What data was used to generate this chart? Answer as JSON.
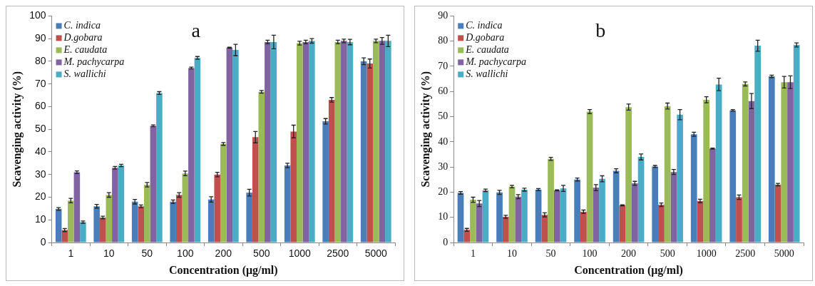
{
  "chart_data": [
    {
      "type": "bar",
      "xlabel": "Concentration (μg/ml)",
      "ylabel": "Scavenging activity (%)",
      "annotations": [
        "a"
      ],
      "categories": [
        "1",
        "10",
        "50",
        "100",
        "200",
        "500",
        "1000",
        "2500",
        "5000"
      ],
      "ylim": [
        0,
        100
      ],
      "yticks": [
        0,
        10,
        20,
        30,
        40,
        50,
        60,
        70,
        80,
        90,
        100
      ],
      "grid": false,
      "legend": "top left",
      "series": [
        {
          "name": "C. indica",
          "color": "#4a7ebb",
          "values": [
            14.8,
            16,
            18,
            18,
            19,
            22,
            34,
            53.5,
            80
          ],
          "errors": [
            0.6,
            0.8,
            1,
            0.8,
            1.2,
            1.5,
            1,
            1.2,
            1.5
          ]
        },
        {
          "name": "D.gobara",
          "color": "#c0504d",
          "values": [
            5.5,
            11,
            16,
            21,
            30,
            46.5,
            49,
            63,
            79
          ],
          "errors": [
            0.7,
            0.6,
            0.6,
            1,
            1,
            2.5,
            2.8,
            1,
            2
          ]
        },
        {
          "name": "E. caudata",
          "color": "#9bbb59",
          "values": [
            18.5,
            21,
            25.5,
            30.5,
            43.5,
            66.5,
            88,
            88.5,
            89
          ],
          "errors": [
            1,
            1,
            1,
            1,
            0.6,
            0.6,
            0.8,
            0.8,
            0.8
          ]
        },
        {
          "name": "M. pachycarpa",
          "color": "#8064a2",
          "values": [
            31,
            33,
            51.5,
            77,
            86,
            88.5,
            88.5,
            89,
            89
          ],
          "errors": [
            0.6,
            0.6,
            0.4,
            0.4,
            0.2,
            0.8,
            0.8,
            0.8,
            1.5
          ]
        },
        {
          "name": "S. wallichi",
          "color": "#4bacc6",
          "values": [
            9,
            34,
            66,
            81.5,
            85,
            88.5,
            89,
            88.5,
            89
          ],
          "errors": [
            0.5,
            0.5,
            0.6,
            0.6,
            2.5,
            3,
            1,
            1.2,
            2.5
          ]
        }
      ]
    },
    {
      "type": "bar",
      "xlabel": "Concentration (μg/ml)",
      "ylabel": "Scavenging activity (%)",
      "annotations": [
        "b"
      ],
      "categories": [
        "1",
        "10",
        "50",
        "100",
        "200",
        "500",
        "1000",
        "2500",
        "5000"
      ],
      "ylim": [
        0,
        90
      ],
      "yticks": [
        0,
        10,
        20,
        30,
        40,
        50,
        60,
        70,
        80,
        90
      ],
      "grid": false,
      "legend": "top left",
      "series": [
        {
          "name": "C. indica",
          "color": "#4a7ebb",
          "values": [
            19.7,
            19.9,
            21,
            25,
            28.5,
            30.2,
            43,
            52.5,
            66
          ],
          "errors": [
            0.5,
            0.8,
            0.4,
            0.6,
            0.8,
            0.4,
            0.8,
            0.3,
            0.5
          ]
        },
        {
          "name": "D.gobara",
          "color": "#c0504d",
          "values": [
            5,
            10.2,
            11,
            12.2,
            14.8,
            15,
            16.5,
            18,
            23
          ],
          "errors": [
            0.6,
            0.6,
            0.8,
            0.7,
            0.2,
            0.7,
            0.7,
            0.9,
            0.5
          ]
        },
        {
          "name": "E. caudata",
          "color": "#9bbb59",
          "values": [
            17,
            22.2,
            33.2,
            52,
            53.8,
            54.2,
            56.7,
            63,
            63.7
          ],
          "errors": [
            1,
            0.5,
            0.6,
            0.8,
            1.2,
            1.2,
            1.2,
            0.8,
            2.3
          ]
        },
        {
          "name": "M. pachycarpa",
          "color": "#8064a2",
          "values": [
            15.5,
            18.2,
            20.7,
            21.8,
            23.5,
            28,
            37.3,
            56.2,
            63.7
          ],
          "errors": [
            1.2,
            0.8,
            0.2,
            1.2,
            0.8,
            1,
            0.2,
            3,
            2.5
          ]
        },
        {
          "name": "S. wallichi",
          "color": "#4bacc6",
          "values": [
            20.7,
            21,
            21.5,
            25.3,
            34,
            50.8,
            62.8,
            78.2,
            78.5
          ],
          "errors": [
            0.5,
            0.6,
            1.2,
            1.2,
            1.2,
            2,
            2.5,
            2.2,
            0.8
          ]
        }
      ]
    }
  ]
}
